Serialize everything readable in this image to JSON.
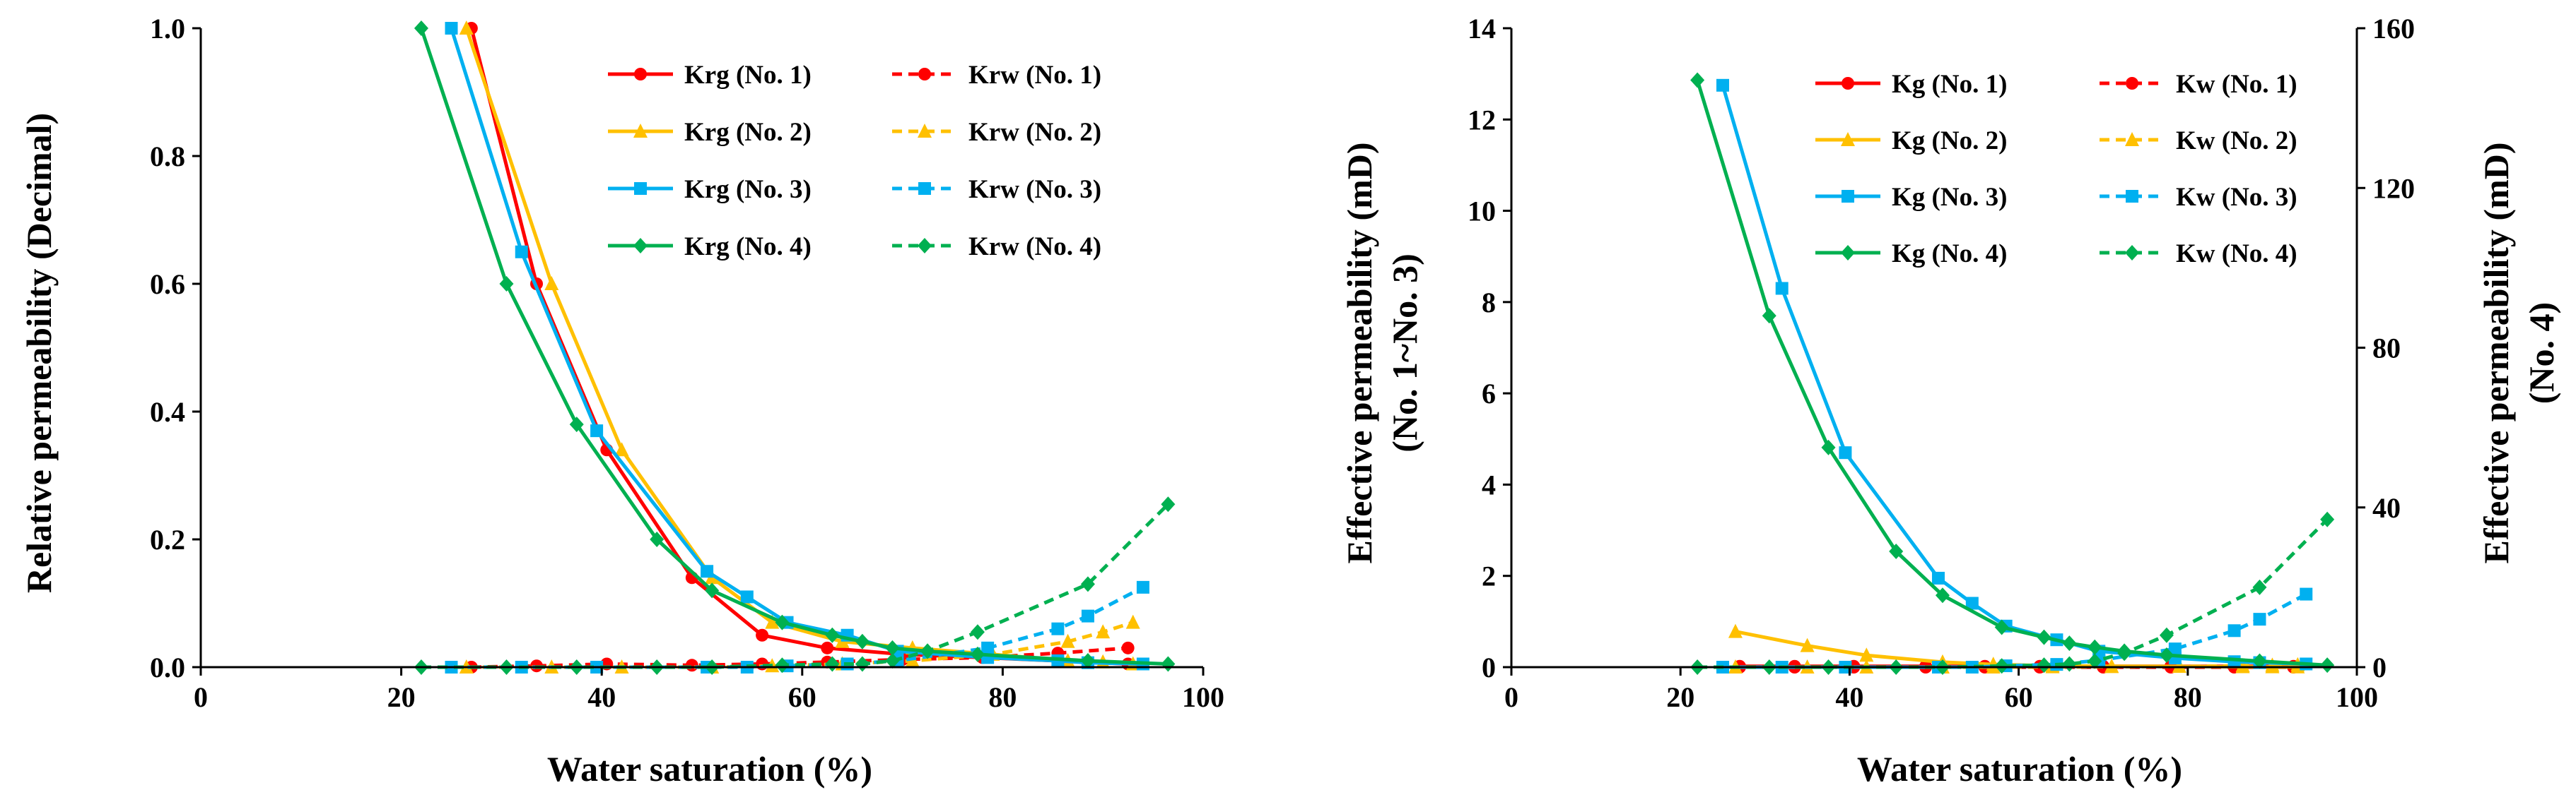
{
  "colors": {
    "no1": "#FF0000",
    "no2": "#FFC000",
    "no3": "#00B0F0",
    "no4": "#00B050",
    "axis": "#000000"
  },
  "chart_data": [
    {
      "type": "line",
      "title": "",
      "xlabel": "Water saturation (%)",
      "ylabel": "Relative permeability (Decimal)",
      "xlim": [
        0,
        100
      ],
      "ylim": [
        0,
        1.0
      ],
      "xticks": [
        "0",
        "20",
        "40",
        "60",
        "80",
        "100"
      ],
      "yticks": [
        "0.0",
        "0.2",
        "0.4",
        "0.6",
        "0.8",
        "1.0"
      ],
      "grid": false,
      "legend": "top-right",
      "series": [
        {
          "name": "Krg (No. 1)",
          "sample": "no1",
          "marker": "circle",
          "dashed": false,
          "x": [
            27,
            33.5,
            40.5,
            49,
            56,
            62.5,
            70,
            78,
            85.5,
            92.5
          ],
          "y": [
            1.0,
            0.6,
            0.34,
            0.14,
            0.05,
            0.03,
            0.02,
            0.015,
            0.01,
            0.005
          ]
        },
        {
          "name": "Krw (No. 1)",
          "sample": "no1",
          "marker": "circle",
          "dashed": true,
          "x": [
            27,
            33.5,
            40.5,
            49,
            56,
            62.5,
            70,
            78,
            85.5,
            92.5
          ],
          "y": [
            0.0,
            0.002,
            0.005,
            0.003,
            0.005,
            0.008,
            0.012,
            0.015,
            0.022,
            0.03
          ]
        },
        {
          "name": "Krg (No. 2)",
          "sample": "no2",
          "marker": "triangle",
          "dashed": false,
          "x": [
            26.5,
            35,
            42,
            51,
            57,
            64,
            71,
            79,
            86.5,
            90,
            93
          ],
          "y": [
            1.0,
            0.6,
            0.34,
            0.14,
            0.07,
            0.04,
            0.03,
            0.02,
            0.01,
            0.008,
            0.005
          ]
        },
        {
          "name": "Krw (No. 2)",
          "sample": "no2",
          "marker": "triangle",
          "dashed": true,
          "x": [
            26.5,
            35,
            42,
            51,
            57,
            64,
            71,
            79,
            86.5,
            90,
            93
          ],
          "y": [
            0.0,
            0.0,
            0.0,
            0.0,
            0.002,
            0.005,
            0.01,
            0.02,
            0.04,
            0.055,
            0.07
          ]
        },
        {
          "name": "Krg (No. 3)",
          "sample": "no3",
          "marker": "square",
          "dashed": false,
          "x": [
            25,
            32,
            39.5,
            50.5,
            54.5,
            58.5,
            64.5,
            69.5,
            78.5,
            85.5,
            88.5,
            94
          ],
          "y": [
            1.0,
            0.65,
            0.37,
            0.15,
            0.11,
            0.07,
            0.05,
            0.025,
            0.015,
            0.01,
            0.007,
            0.005
          ]
        },
        {
          "name": "Krw (No. 3)",
          "sample": "no3",
          "marker": "square",
          "dashed": true,
          "x": [
            25,
            32,
            39.5,
            50.5,
            54.5,
            58.5,
            64.5,
            69.5,
            78.5,
            85.5,
            88.5,
            94
          ],
          "y": [
            0.0,
            0.0,
            0.0,
            0.0,
            0.0,
            0.002,
            0.005,
            0.01,
            0.03,
            0.06,
            0.08,
            0.125
          ]
        },
        {
          "name": "Krg (No. 4)",
          "sample": "no4",
          "marker": "diamond",
          "dashed": false,
          "x": [
            22,
            30.5,
            37.5,
            45.5,
            51,
            58,
            63,
            66,
            69,
            72.5,
            77.5,
            88.5,
            96.5
          ],
          "y": [
            1.0,
            0.6,
            0.38,
            0.2,
            0.12,
            0.07,
            0.05,
            0.04,
            0.03,
            0.025,
            0.02,
            0.01,
            0.005
          ]
        },
        {
          "name": "Krw (No. 4)",
          "sample": "no4",
          "marker": "diamond",
          "dashed": true,
          "x": [
            22,
            30.5,
            37.5,
            45.5,
            51,
            58,
            63,
            66,
            69,
            72.5,
            77.5,
            88.5,
            96.5
          ],
          "y": [
            0.0,
            0.0,
            0.0,
            0.0,
            0.0,
            0.003,
            0.005,
            0.005,
            0.01,
            0.025,
            0.055,
            0.13,
            0.255
          ]
        }
      ]
    },
    {
      "type": "line",
      "title": "",
      "xlabel": "Water saturation (%)",
      "ylabel": "Effective permeability (mD)",
      "ylabel_sub": "(No. 1~No. 3)",
      "y2label": "Effective permeability (mD)",
      "y2label_sub": "(No. 4)",
      "xlim": [
        0,
        100
      ],
      "ylim": [
        0,
        14
      ],
      "y2lim": [
        0,
        160
      ],
      "xticks": [
        "0",
        "20",
        "40",
        "60",
        "80",
        "100"
      ],
      "yticks": [
        "0",
        "2",
        "4",
        "6",
        "8",
        "10",
        "12",
        "14"
      ],
      "y2ticks": [
        "0",
        "40",
        "80",
        "120",
        "160"
      ],
      "grid": false,
      "legend": "top-right",
      "series": [
        {
          "name": "Kg (No. 1)",
          "sample": "no1",
          "marker": "circle",
          "dashed": false,
          "axis": "left",
          "x": [
            27,
            33.5,
            40.5,
            49,
            56,
            62.5,
            70,
            78,
            85.5,
            92.5
          ],
          "y": [
            0.02,
            0.02,
            0.02,
            0.02,
            0.02,
            0.02,
            0.02,
            0.02,
            0.02,
            0.02
          ]
        },
        {
          "name": "Kw (No. 1)",
          "sample": "no1",
          "marker": "circle",
          "dashed": true,
          "axis": "left",
          "x": [
            27,
            33.5,
            40.5,
            49,
            56,
            62.5,
            70,
            78,
            85.5,
            92.5
          ],
          "y": [
            0.0,
            0.0,
            0.0,
            0.0,
            0.0,
            0.0,
            0.0,
            0.0,
            0.0,
            0.0
          ]
        },
        {
          "name": "Kg (No. 2)",
          "sample": "no2",
          "marker": "triangle",
          "dashed": false,
          "axis": "left",
          "x": [
            26.5,
            35,
            42,
            51,
            57,
            64,
            71,
            79,
            86.5,
            90,
            93
          ],
          "y": [
            0.78,
            0.47,
            0.26,
            0.11,
            0.06,
            0.03,
            0.02,
            0.015,
            0.008,
            0.005,
            0.004
          ]
        },
        {
          "name": "Kw (No. 2)",
          "sample": "no2",
          "marker": "triangle",
          "dashed": true,
          "axis": "left",
          "x": [
            26.5,
            35,
            42,
            51,
            57,
            64,
            71,
            79,
            86.5,
            90,
            93
          ],
          "y": [
            0.0,
            0.0,
            0.0,
            0.0,
            0.0,
            0.005,
            0.01,
            0.015,
            0.03,
            0.04,
            0.05
          ]
        },
        {
          "name": "Kg (No. 3)",
          "sample": "no3",
          "marker": "square",
          "dashed": false,
          "axis": "left",
          "x": [
            25,
            32,
            39.5,
            50.5,
            54.5,
            58.5,
            64.5,
            69.5,
            78.5,
            85.5,
            88.5,
            94
          ],
          "y": [
            12.75,
            8.3,
            4.7,
            1.95,
            1.4,
            0.9,
            0.6,
            0.35,
            0.2,
            0.12,
            0.1,
            0.07
          ]
        },
        {
          "name": "Kw (No. 3)",
          "sample": "no3",
          "marker": "square",
          "dashed": true,
          "axis": "left",
          "x": [
            25,
            32,
            39.5,
            50.5,
            54.5,
            58.5,
            64.5,
            69.5,
            78.5,
            85.5,
            88.5,
            94
          ],
          "y": [
            0.0,
            0.0,
            0.0,
            0.0,
            0.0,
            0.03,
            0.06,
            0.15,
            0.4,
            0.8,
            1.05,
            1.6
          ]
        },
        {
          "name": "Kg (No. 4)",
          "sample": "no4",
          "marker": "diamond",
          "dashed": false,
          "axis": "right",
          "x": [
            22,
            30.5,
            37.5,
            45.5,
            51,
            58,
            63,
            66,
            69,
            72.5,
            77.5,
            88.5,
            96.5
          ],
          "y": [
            147,
            88,
            55,
            29,
            18,
            10,
            7.5,
            6,
            5,
            4,
            3,
            1.5,
            0.5
          ]
        },
        {
          "name": "Kw (No. 4)",
          "sample": "no4",
          "marker": "diamond",
          "dashed": true,
          "axis": "right",
          "x": [
            22,
            30.5,
            37.5,
            45.5,
            51,
            58,
            63,
            66,
            69,
            72.5,
            77.5,
            88.5,
            96.5
          ],
          "y": [
            0.0,
            0.0,
            0.0,
            0.0,
            0.0,
            0.3,
            0.5,
            0.8,
            1.5,
            3.5,
            8,
            20,
            37
          ]
        }
      ]
    }
  ]
}
